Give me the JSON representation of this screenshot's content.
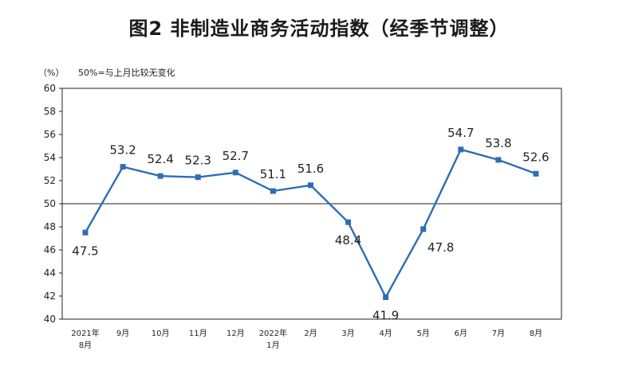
{
  "chart_data": {
    "type": "line",
    "title": "图2  非制造业商务活动指数（经季节调整）",
    "unit_label": "（%）",
    "note": "50%=与上月比较无变化",
    "categories": [
      [
        "2021年",
        "8月"
      ],
      [
        "9月"
      ],
      [
        "10月"
      ],
      [
        "11月"
      ],
      [
        "12月"
      ],
      [
        "2022年",
        "1月"
      ],
      [
        "2月"
      ],
      [
        "3月"
      ],
      [
        "4月"
      ],
      [
        "5月"
      ],
      [
        "6月"
      ],
      [
        "7月"
      ],
      [
        "8月"
      ]
    ],
    "series": [
      {
        "values": [
          47.5,
          53.2,
          52.4,
          52.3,
          52.7,
          51.1,
          51.6,
          48.4,
          41.9,
          47.8,
          54.7,
          53.8,
          52.6
        ]
      }
    ],
    "ylim": [
      40,
      60
    ],
    "yticks": [
      40,
      42,
      44,
      46,
      48,
      50,
      52,
      54,
      56,
      58,
      60
    ],
    "reference_line": 50,
    "label_positions": [
      "below",
      "above",
      "above",
      "above",
      "above",
      "above",
      "above",
      "below",
      "below",
      "below-right",
      "above",
      "above",
      "above"
    ],
    "colors": {
      "line": "#2e6db4",
      "marker": "#2e6db4",
      "axis": "#222222"
    }
  }
}
